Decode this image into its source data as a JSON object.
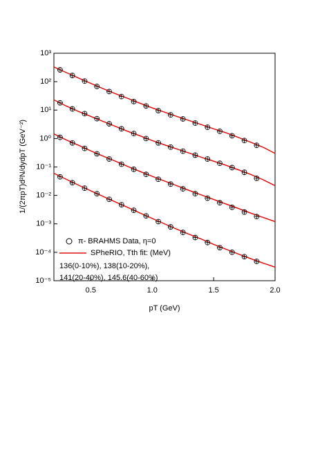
{
  "chart_data": {
    "type": "log-scatter-fit",
    "x_label": "pT (GeV)",
    "y_label": "1/(2πpT)d²N/dydpT (GeV⁻²)",
    "log_y": true,
    "xlim": [
      0.2,
      2.0
    ],
    "xticks": [
      0.5,
      {
        "value": 1.0,
        "label": "1.0"
      },
      1.5,
      {
        "value": 2.0,
        "label": "2.0"
      }
    ],
    "ylim": [
      1e-05,
      1000
    ],
    "yticks": [
      {
        "value": 1e-05,
        "label": "10⁻⁵"
      },
      {
        "value": 0.0001,
        "label": "10⁻⁴"
      },
      {
        "value": 0.001,
        "label": "10⁻³"
      },
      {
        "value": 0.01,
        "label": "10⁻²"
      },
      {
        "value": 0.1,
        "label": "10⁻¹"
      },
      {
        "value": 1,
        "label": "10⁰"
      },
      {
        "value": 10,
        "label": "10¹"
      },
      {
        "value": 100,
        "label": "10²"
      },
      {
        "value": 1000,
        "label": "10³"
      }
    ],
    "series": [
      {
        "name": "π- BRAHMS Data, η=0",
        "color": "#000000",
        "x": [
          0.25,
          0.35,
          0.45,
          0.55,
          0.65,
          0.75,
          0.85,
          0.95,
          1.05,
          1.15,
          1.25,
          1.35,
          1.45,
          1.55,
          1.65,
          1.75,
          1.85
        ],
        "groups": [
          [
            260,
            165,
            105,
            68,
            45,
            30,
            20,
            14,
            9.6,
            6.8,
            4.9,
            3.5,
            2.5,
            1.8,
            1.25,
            0.85,
            0.58
          ],
          [
            18,
            11,
            7.5,
            5.0,
            3.3,
            2.2,
            1.5,
            1.0,
            0.7,
            0.5,
            0.36,
            0.26,
            0.19,
            0.135,
            0.095,
            0.065,
            0.04
          ],
          [
            1.1,
            0.7,
            0.45,
            0.29,
            0.19,
            0.125,
            0.083,
            0.055,
            0.037,
            0.025,
            0.017,
            0.0115,
            0.008,
            0.0055,
            0.0038,
            0.0026,
            0.0018
          ],
          [
            0.045,
            0.028,
            0.018,
            0.0115,
            0.0073,
            0.0047,
            0.003,
            0.0019,
            0.0012,
            0.00078,
            0.0005,
            0.00033,
            0.00022,
            0.000145,
            0.0001,
            7e-05,
            4.8e-05
          ]
        ]
      },
      {
        "name": "SPheRIO, Tth fit: (MeV)",
        "color": "#dd1111",
        "x": [
          0.2,
          0.3,
          0.4,
          0.5,
          0.6,
          0.7,
          0.8,
          0.9,
          1.0,
          1.1,
          1.2,
          1.3,
          1.4,
          1.5,
          1.6,
          1.7,
          1.8,
          1.9,
          2.0
        ],
        "groups": [
          [
            330,
            210,
            135,
            87,
            57,
            38,
            26,
            17.5,
            12,
            8.5,
            6,
            4.3,
            3.1,
            2.2,
            1.6,
            1.1,
            0.75,
            0.5,
            0.3
          ],
          [
            23,
            14,
            9,
            6,
            4,
            2.7,
            1.8,
            1.25,
            0.85,
            0.6,
            0.43,
            0.31,
            0.22,
            0.16,
            0.115,
            0.08,
            0.055,
            0.036,
            0.022
          ],
          [
            1.45,
            0.9,
            0.58,
            0.37,
            0.24,
            0.16,
            0.105,
            0.07,
            0.047,
            0.032,
            0.022,
            0.015,
            0.0104,
            0.0072,
            0.005,
            0.0035,
            0.0024,
            0.0017,
            0.0012
          ],
          [
            0.06,
            0.037,
            0.023,
            0.0145,
            0.0092,
            0.0059,
            0.0038,
            0.0024,
            0.00155,
            0.001,
            0.00065,
            0.00043,
            0.00029,
            0.00019,
            0.000128,
            8.7e-05,
            6e-05,
            4.2e-05,
            3e-05
          ]
        ]
      }
    ],
    "annotations": [
      "136(0-10%), 138(10-20%),",
      "141(20-40%), 145.6(40-60%)"
    ]
  }
}
